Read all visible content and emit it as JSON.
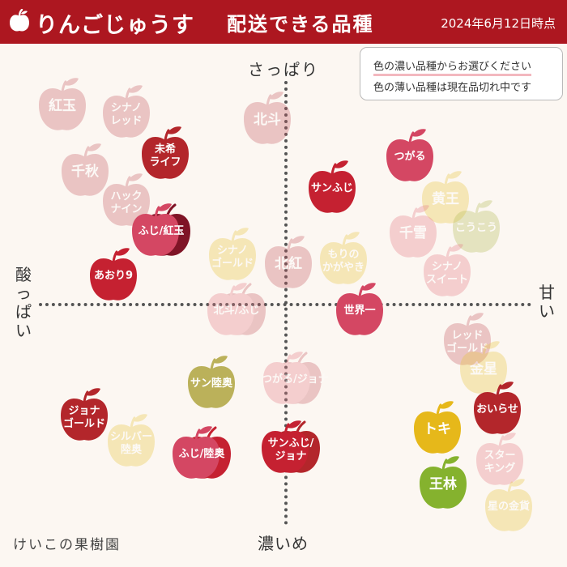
{
  "header": {
    "brand": "りんごじゅうす",
    "title": "配送できる品種",
    "date": "2024年6月12日時点",
    "logo_icon": "apple-icon"
  },
  "legend": {
    "dark": "色の濃い品種からお選びください",
    "light": "色の薄い品種は現在品切れ中です"
  },
  "axes": {
    "top": "さっぱり",
    "bottom": "濃いめ",
    "left": "酸っぱい",
    "right": "甘い"
  },
  "footer": "けいこの果樹園",
  "colors": {
    "header": "#ad1720",
    "red": "#c52131",
    "crimson": "#b3262b",
    "pink": "#d44763",
    "dark": "#7f1426",
    "olive": "#bbb15a",
    "yellow": "#e6b81a",
    "green": "#85b22e"
  },
  "apples": [
    {
      "id": "kougyoku",
      "label": "紅玉",
      "available": false,
      "color": "#c55a64",
      "big": true
    },
    {
      "id": "shinano-red",
      "label": "シナノ\nレッド",
      "available": false,
      "color": "#c55a64"
    },
    {
      "id": "senshu",
      "label": "千秋",
      "available": false,
      "color": "#c55a64",
      "big": true
    },
    {
      "id": "miki-life",
      "label": "未希\nライフ",
      "available": true,
      "color": "#b3262b"
    },
    {
      "id": "hakku-nain",
      "label": "ハック\nナイン",
      "available": false,
      "color": "#c55a64"
    },
    {
      "id": "fuji-kougyoku",
      "label": "ふじ/紅玉",
      "available": true,
      "color": "#d44763",
      "color2": "#7f1426"
    },
    {
      "id": "aori9",
      "label": "あおり9",
      "available": true,
      "color": "#c52131"
    },
    {
      "id": "hokuto",
      "label": "北斗",
      "available": false,
      "color": "#c55a64",
      "big": true
    },
    {
      "id": "sunfuji",
      "label": "サンふじ",
      "available": true,
      "color": "#c52131"
    },
    {
      "id": "tsugaru",
      "label": "つがる",
      "available": true,
      "color": "#d44763"
    },
    {
      "id": "kiou",
      "label": "黄王",
      "available": false,
      "color": "#e8c43a",
      "big": true
    },
    {
      "id": "chiyuki",
      "label": "千雪",
      "available": false,
      "color": "#e57b86",
      "big": true
    },
    {
      "id": "koukou",
      "label": "こうこう",
      "available": false,
      "color": "#b3bb56"
    },
    {
      "id": "shinano-gold",
      "label": "シナノ\nゴールド",
      "available": false,
      "color": "#e8c43a"
    },
    {
      "id": "hokkou",
      "label": "北紅",
      "available": false,
      "color": "#c55a64",
      "big": true
    },
    {
      "id": "morino-kagayaki",
      "label": "もりの\nかがやき",
      "available": false,
      "color": "#e8c43a"
    },
    {
      "id": "shinano-sweet",
      "label": "シナノ\nスイート",
      "available": false,
      "color": "#e57b86"
    },
    {
      "id": "hokuto-fuji",
      "label": "北斗/ふじ",
      "available": false,
      "color": "#e57b86",
      "color2": "#c55a64"
    },
    {
      "id": "sekaiichi",
      "label": "世界一",
      "available": true,
      "color": "#d44763"
    },
    {
      "id": "red-gold",
      "label": "レッド\nゴールド",
      "available": false,
      "color": "#c55a64"
    },
    {
      "id": "kinsei",
      "label": "金星",
      "available": false,
      "color": "#e8c43a",
      "big": true
    },
    {
      "id": "sun-mutsu",
      "label": "サン陸奥",
      "available": true,
      "color": "#bbb15a"
    },
    {
      "id": "tsugaru-jonagold",
      "label": "つがる/ジョナ",
      "available": false,
      "color": "#e57b86",
      "color2": "#c55a64"
    },
    {
      "id": "jonagold",
      "label": "ジョナ\nゴールド",
      "available": true,
      "color": "#b3262b"
    },
    {
      "id": "silver-mutsu",
      "label": "シルバー\n陸奥",
      "available": false,
      "color": "#e8c43a"
    },
    {
      "id": "fuji-mutsu",
      "label": "ふじ/陸奥",
      "available": true,
      "color": "#d44763",
      "color2": "#c52131"
    },
    {
      "id": "sunfuji-jona",
      "label": "サンふじ/\nジョナ",
      "available": true,
      "color": "#c52131",
      "color2": "#b3262b"
    },
    {
      "id": "oirase",
      "label": "おいらせ",
      "available": true,
      "color": "#b3262b"
    },
    {
      "id": "toki",
      "label": "トキ",
      "available": true,
      "color": "#e6b81a",
      "big": true
    },
    {
      "id": "star-king",
      "label": "スター\nキング",
      "available": false,
      "color": "#e57b86"
    },
    {
      "id": "ourin",
      "label": "王林",
      "available": true,
      "color": "#85b22e",
      "big": true
    },
    {
      "id": "hoshino-kinka",
      "label": "星の金貨",
      "available": false,
      "color": "#e8c43a"
    }
  ]
}
